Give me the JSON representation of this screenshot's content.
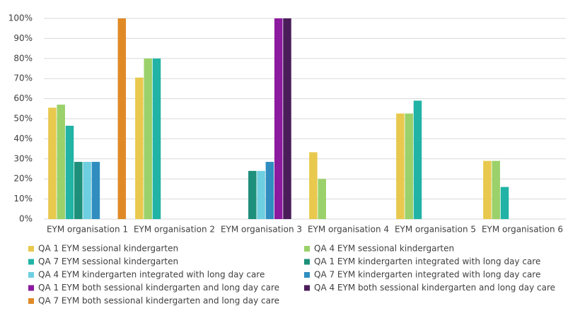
{
  "chart_data": {
    "type": "bar",
    "categories": [
      "EYM organisation 1",
      "EYM organisation 2",
      "EYM organisation 3",
      "EYM organisation 4",
      "EYM organisation 5",
      "EYM organisation 6"
    ],
    "series": [
      {
        "name": "QA 1 EYM sessional kindergarten",
        "color": "#e8c94e",
        "values": [
          55.5,
          70.5,
          0,
          33.3,
          52.6,
          29
        ]
      },
      {
        "name": "QA 4 EYM sessional kindergarten",
        "color": "#9bd16a",
        "values": [
          57,
          80,
          0,
          20,
          52.6,
          29
        ]
      },
      {
        "name": "QA 7 EYM sessional kindergarten",
        "color": "#21b3a5",
        "values": [
          46.5,
          80,
          0,
          0,
          59,
          16
        ]
      },
      {
        "name": "QA 1 EYM kindergarten integrated with long day care",
        "color": "#1e8f7a",
        "values": [
          28.5,
          0,
          24,
          0,
          0,
          0
        ]
      },
      {
        "name": "QA 4 EYM kindergarten integrated with long day care",
        "color": "#6ecfe0",
        "values": [
          28.5,
          0,
          24,
          0,
          0,
          0
        ]
      },
      {
        "name": "QA 7 EYM kindergarten integrated with long day care",
        "color": "#2f8ebf",
        "values": [
          28.5,
          0,
          28.5,
          0,
          0,
          0
        ]
      },
      {
        "name": "QA 1 EYM both sessional kindergarten and long day care",
        "color": "#8b1a9e",
        "values": [
          0,
          0,
          100,
          0,
          0,
          0
        ]
      },
      {
        "name": "QA 4 EYM both sessional kindergarten and long day care",
        "color": "#4a1d5a",
        "values": [
          0,
          0,
          100,
          0,
          0,
          0
        ]
      },
      {
        "name": "QA 7 EYM both sessional kindergarten and long day care",
        "color": "#e08a27",
        "values": [
          100,
          0,
          0,
          0,
          0,
          0
        ]
      }
    ],
    "ylim": [
      0,
      100
    ],
    "yticks": [
      {
        "value": 0,
        "label": "0%"
      },
      {
        "value": 10,
        "label": "10%"
      },
      {
        "value": 20,
        "label": "20%"
      },
      {
        "value": 30,
        "label": "30%"
      },
      {
        "value": 40,
        "label": "40%"
      },
      {
        "value": 50,
        "label": "50%"
      },
      {
        "value": 60,
        "label": "60%"
      },
      {
        "value": 70,
        "label": "70%"
      },
      {
        "value": 80,
        "label": "80%"
      },
      {
        "value": 90,
        "label": "90%"
      },
      {
        "value": 100,
        "label": "100%"
      }
    ],
    "grid": true
  }
}
